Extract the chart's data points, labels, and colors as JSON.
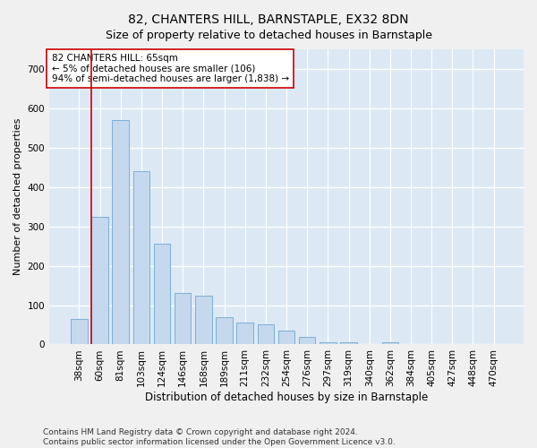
{
  "title": "82, CHANTERS HILL, BARNSTAPLE, EX32 8DN",
  "subtitle": "Size of property relative to detached houses in Barnstaple",
  "xlabel": "Distribution of detached houses by size in Barnstaple",
  "ylabel": "Number of detached properties",
  "categories": [
    "38sqm",
    "60sqm",
    "81sqm",
    "103sqm",
    "124sqm",
    "146sqm",
    "168sqm",
    "189sqm",
    "211sqm",
    "232sqm",
    "254sqm",
    "276sqm",
    "297sqm",
    "319sqm",
    "340sqm",
    "362sqm",
    "384sqm",
    "405sqm",
    "427sqm",
    "448sqm",
    "470sqm"
  ],
  "values": [
    65,
    325,
    570,
    440,
    255,
    130,
    125,
    70,
    55,
    50,
    35,
    20,
    5,
    5,
    0,
    5,
    0,
    0,
    0,
    0,
    0
  ],
  "bar_color": "#c5d8ee",
  "bar_edge_color": "#7bafd4",
  "vline_color": "#cc0000",
  "annotation_text": "82 CHANTERS HILL: 65sqm\n← 5% of detached houses are smaller (106)\n94% of semi-detached houses are larger (1,838) →",
  "annotation_box_color": "#ffffff",
  "annotation_box_edge_color": "#cc0000",
  "ylim": [
    0,
    750
  ],
  "yticks": [
    0,
    100,
    200,
    300,
    400,
    500,
    600,
    700
  ],
  "background_color": "#dce9f5",
  "figure_color": "#f0f0f0",
  "grid_color": "#ffffff",
  "title_fontsize": 10,
  "xlabel_fontsize": 8.5,
  "ylabel_fontsize": 8,
  "tick_fontsize": 7.5,
  "annotation_fontsize": 7.5,
  "footer_text": "Contains HM Land Registry data © Crown copyright and database right 2024.\nContains public sector information licensed under the Open Government Licence v3.0.",
  "footer_fontsize": 6.5
}
